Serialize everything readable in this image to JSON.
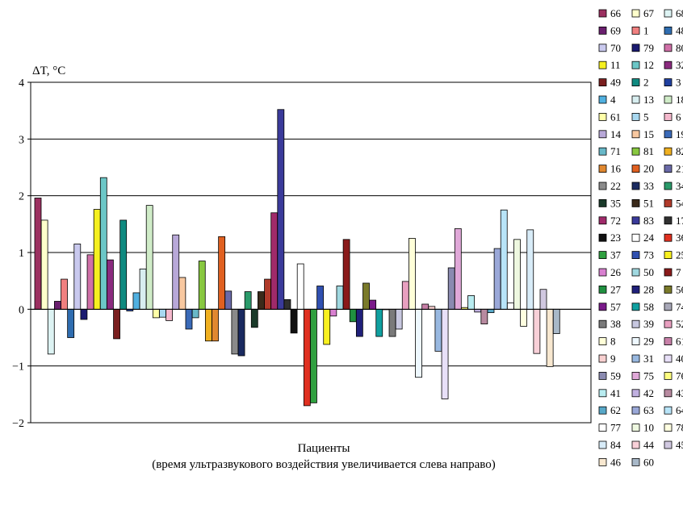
{
  "chart_data": {
    "type": "bar",
    "ylabel": "ΔT, °C",
    "xlabel_line1": "Пациенты",
    "xlabel_line2": "(время ультразвукового воздействия увеличивается слева направо)",
    "ylim": [
      -2,
      4
    ],
    "yticks": [
      {
        "value": 4,
        "label": "4"
      },
      {
        "value": 3,
        "label": "3"
      },
      {
        "value": 2,
        "label": "2"
      },
      {
        "value": 1,
        "label": "1"
      },
      {
        "value": 0,
        "label": "0"
      },
      {
        "value": -1,
        "label": "−1"
      },
      {
        "value": -2,
        "label": "−2"
      }
    ],
    "grid": "horizontal",
    "legend_placement": "right",
    "series": [
      {
        "name": "66",
        "value": 1.96,
        "color": "#9b3060"
      },
      {
        "name": "67",
        "value": 1.57,
        "color": "#ffffcc"
      },
      {
        "name": "68",
        "value": -0.79,
        "color": "#ddf3f3"
      },
      {
        "name": "69",
        "value": 0.14,
        "color": "#6a1f6e"
      },
      {
        "name": "1",
        "value": 0.53,
        "color": "#f08080"
      },
      {
        "name": "48",
        "value": -0.5,
        "color": "#2f6db0"
      },
      {
        "name": "70",
        "value": 1.15,
        "color": "#c9c9ee"
      },
      {
        "name": "79",
        "value": -0.18,
        "color": "#1a1a70"
      },
      {
        "name": "80",
        "value": 0.96,
        "color": "#d070a8"
      },
      {
        "name": "11",
        "value": 1.76,
        "color": "#f5f020"
      },
      {
        "name": "12",
        "value": 2.32,
        "color": "#6cc7c7"
      },
      {
        "name": "32",
        "value": 0.87,
        "color": "#8a2a7e"
      },
      {
        "name": "49",
        "value": -0.52,
        "color": "#7a1f1f"
      },
      {
        "name": "2",
        "value": 1.57,
        "color": "#0f8a80"
      },
      {
        "name": "3",
        "value": -0.03,
        "color": "#2040a0"
      },
      {
        "name": "4",
        "value": 0.29,
        "color": "#50b0e0"
      },
      {
        "name": "13",
        "value": 0.71,
        "color": "#d8eef0"
      },
      {
        "name": "18",
        "value": 1.83,
        "color": "#d0ecc8"
      },
      {
        "name": "61",
        "value": -0.15,
        "color": "#ffffa8"
      },
      {
        "name": "5",
        "value": -0.14,
        "color": "#a8d8f0"
      },
      {
        "name": "6",
        "value": -0.2,
        "color": "#f4b8cc"
      },
      {
        "name": "14",
        "value": 1.31,
        "color": "#b8a8d8"
      },
      {
        "name": "15",
        "value": 0.56,
        "color": "#f8c8a0"
      },
      {
        "name": "19",
        "value": -0.35,
        "color": "#3a6ab8"
      },
      {
        "name": "71",
        "value": -0.15,
        "color": "#68b8c8"
      },
      {
        "name": "81",
        "value": 0.85,
        "color": "#88c840"
      },
      {
        "name": "82",
        "value": -0.56,
        "color": "#f0b020"
      },
      {
        "name": "16",
        "value": -0.56,
        "color": "#e08830"
      },
      {
        "name": "20",
        "value": 1.28,
        "color": "#e06020"
      },
      {
        "name": "21",
        "value": 0.32,
        "color": "#6a6aa8"
      },
      {
        "name": "22",
        "value": -0.79,
        "color": "#8a8a8a"
      },
      {
        "name": "33",
        "value": -0.82,
        "color": "#1a2a60"
      },
      {
        "name": "34",
        "value": 0.31,
        "color": "#2a9a6a"
      },
      {
        "name": "35",
        "value": -0.32,
        "color": "#1a3a2a"
      },
      {
        "name": "51",
        "value": 0.31,
        "color": "#3a2a1a"
      },
      {
        "name": "54",
        "value": 0.53,
        "color": "#b03a2a"
      },
      {
        "name": "72",
        "value": 1.7,
        "color": "#a02a6a"
      },
      {
        "name": "83",
        "value": 3.52,
        "color": "#3a3a9a"
      },
      {
        "name": "17",
        "value": 0.17,
        "color": "#303030"
      },
      {
        "name": "23",
        "value": -0.42,
        "color": "#111111"
      },
      {
        "name": "24",
        "value": 0.8,
        "color": "#ffffff"
      },
      {
        "name": "36",
        "value": -1.7,
        "color": "#e03020"
      },
      {
        "name": "37",
        "value": -1.65,
        "color": "#30a040"
      },
      {
        "name": "73",
        "value": 0.41,
        "color": "#3050b0"
      },
      {
        "name": "25",
        "value": -0.62,
        "color": "#f8f020"
      },
      {
        "name": "26",
        "value": -0.12,
        "color": "#d880d0"
      },
      {
        "name": "50",
        "value": 0.41,
        "color": "#a0d8e0"
      },
      {
        "name": "7",
        "value": 1.23,
        "color": "#8a1a1a"
      },
      {
        "name": "27",
        "value": -0.22,
        "color": "#209040"
      },
      {
        "name": "28",
        "value": -0.48,
        "color": "#20207a"
      },
      {
        "name": "56",
        "value": 0.46,
        "color": "#7a7a2a"
      },
      {
        "name": "57",
        "value": 0.16,
        "color": "#7a1a8a"
      },
      {
        "name": "58",
        "value": -0.48,
        "color": "#10a0a0"
      },
      {
        "name": "74",
        "value": 0.0,
        "color": "#a8a8b8"
      },
      {
        "name": "38",
        "value": -0.48,
        "color": "#7a7a7a"
      },
      {
        "name": "39",
        "value": -0.35,
        "color": "#c8c8e0"
      },
      {
        "name": "52",
        "value": 0.49,
        "color": "#e8a0c0"
      },
      {
        "name": "8",
        "value": 1.25,
        "color": "#ffffd8"
      },
      {
        "name": "29",
        "value": -1.2,
        "color": "#eef8ff"
      },
      {
        "name": "61",
        "value": 0.09,
        "color": "#c880a8"
      },
      {
        "name": "9",
        "value": 0.05,
        "color": "#f8d0d0"
      },
      {
        "name": "31",
        "value": -0.74,
        "color": "#98b8e0"
      },
      {
        "name": "40",
        "value": -1.58,
        "color": "#e8e0f8"
      },
      {
        "name": "59",
        "value": 0.73,
        "color": "#8a8ab0"
      },
      {
        "name": "75",
        "value": 1.42,
        "color": "#e0a8d8"
      },
      {
        "name": "76",
        "value": 0.03,
        "color": "#ffff80"
      },
      {
        "name": "41",
        "value": 0.24,
        "color": "#b8ecf0"
      },
      {
        "name": "42",
        "value": -0.05,
        "color": "#c0b0e0"
      },
      {
        "name": "43",
        "value": -0.26,
        "color": "#b88aa0"
      },
      {
        "name": "62",
        "value": -0.06,
        "color": "#58a8c8"
      },
      {
        "name": "63",
        "value": 1.07,
        "color": "#9aa8d8"
      },
      {
        "name": "64",
        "value": 1.75,
        "color": "#b8e4f8"
      },
      {
        "name": "77",
        "value": 0.11,
        "color": "#ffffff"
      },
      {
        "name": "10",
        "value": 1.23,
        "color": "#eef8e0"
      },
      {
        "name": "78",
        "value": -0.3,
        "color": "#ffffe0"
      },
      {
        "name": "84",
        "value": 1.4,
        "color": "#d8ecf8"
      },
      {
        "name": "44",
        "value": -0.78,
        "color": "#f8d0d8"
      },
      {
        "name": "45",
        "value": 0.35,
        "color": "#d0c8e0"
      },
      {
        "name": "46",
        "value": -1.01,
        "color": "#f8e8d0"
      },
      {
        "name": "60",
        "value": -0.43,
        "color": "#a8b8c8"
      }
    ]
  }
}
